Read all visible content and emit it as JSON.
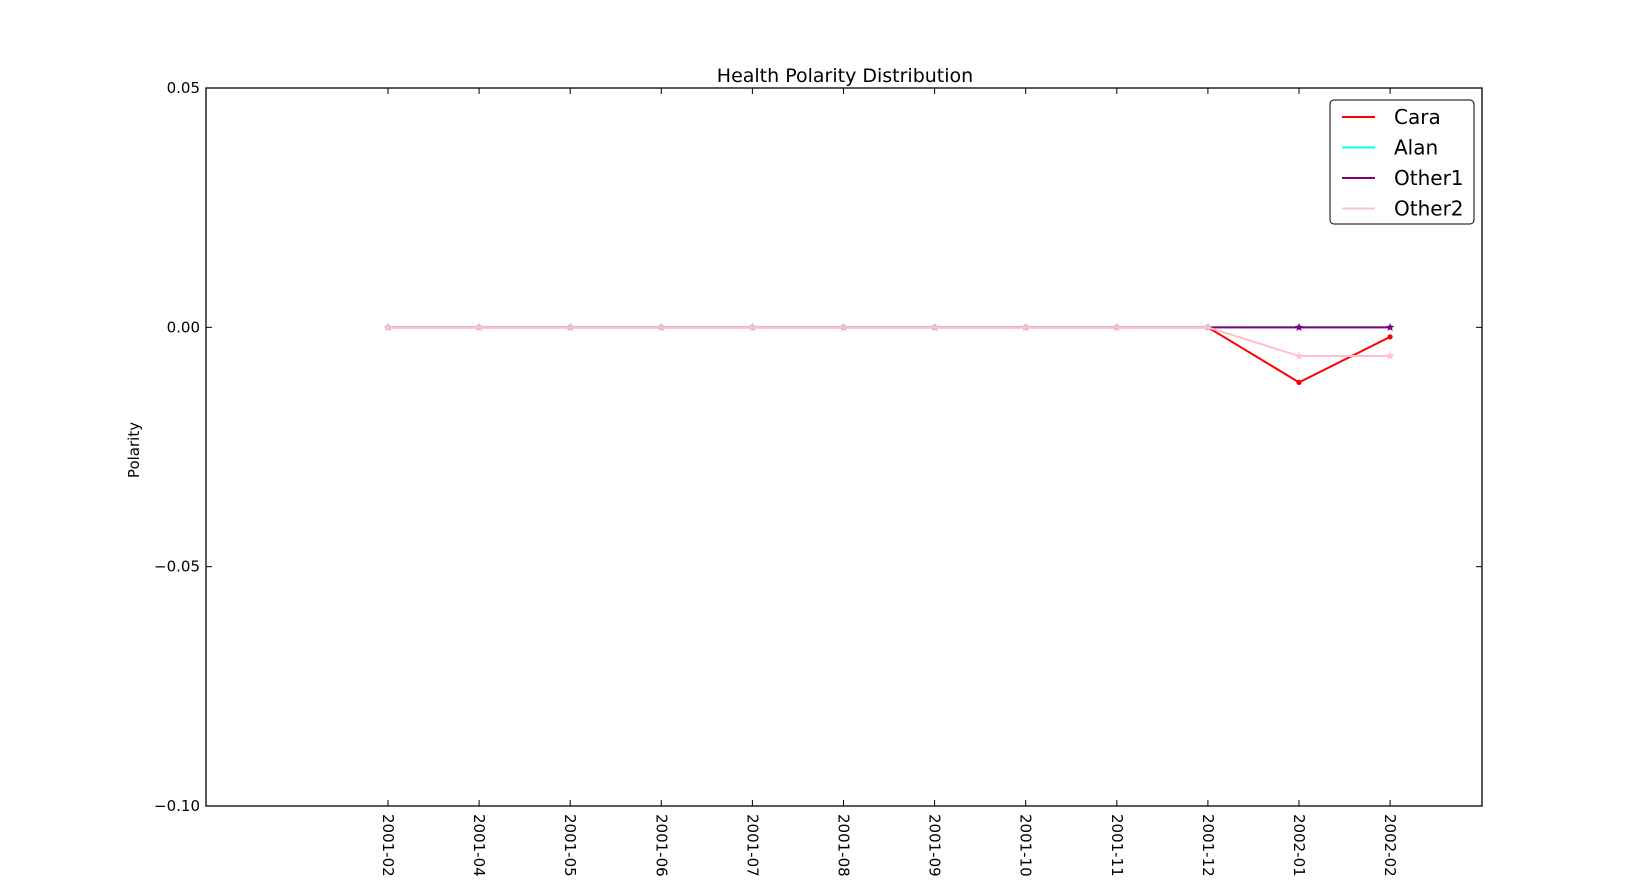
{
  "chart_data": {
    "type": "line",
    "title": "Health Polarity Distribution",
    "xlabel": "",
    "ylabel": "Polarity",
    "categories": [
      "2001-02",
      "2001-04",
      "2001-05",
      "2001-06",
      "2001-07",
      "2001-08",
      "2001-09",
      "2001-10",
      "2001-11",
      "2001-12",
      "2002-01",
      "2002-02"
    ],
    "ylim": [
      -0.1,
      0.05
    ],
    "yticks": [
      "0.05",
      "0.00",
      "−0.05",
      "−0.10"
    ],
    "grid": false,
    "legend_position": "top-right",
    "series": [
      {
        "name": "Cara",
        "color": "#ff0000",
        "marker": "dot",
        "values": [
          0,
          0,
          0,
          0,
          0,
          0,
          0,
          0,
          0,
          0,
          -0.0115,
          -0.002
        ]
      },
      {
        "name": "Alan",
        "color": "#00ffff",
        "marker": "dot",
        "values": [
          0,
          0,
          0,
          0,
          0,
          0,
          0,
          0,
          0,
          0,
          0,
          0
        ]
      },
      {
        "name": "Other1",
        "color": "#800080",
        "marker": "star",
        "values": [
          0,
          0,
          0,
          0,
          0,
          0,
          0,
          0,
          0,
          0,
          0,
          0
        ]
      },
      {
        "name": "Other2",
        "color": "#ffc0cb",
        "marker": "star",
        "values": [
          0,
          0,
          0,
          0,
          0,
          0,
          0,
          0,
          0,
          0,
          -0.006,
          -0.006
        ]
      }
    ]
  }
}
